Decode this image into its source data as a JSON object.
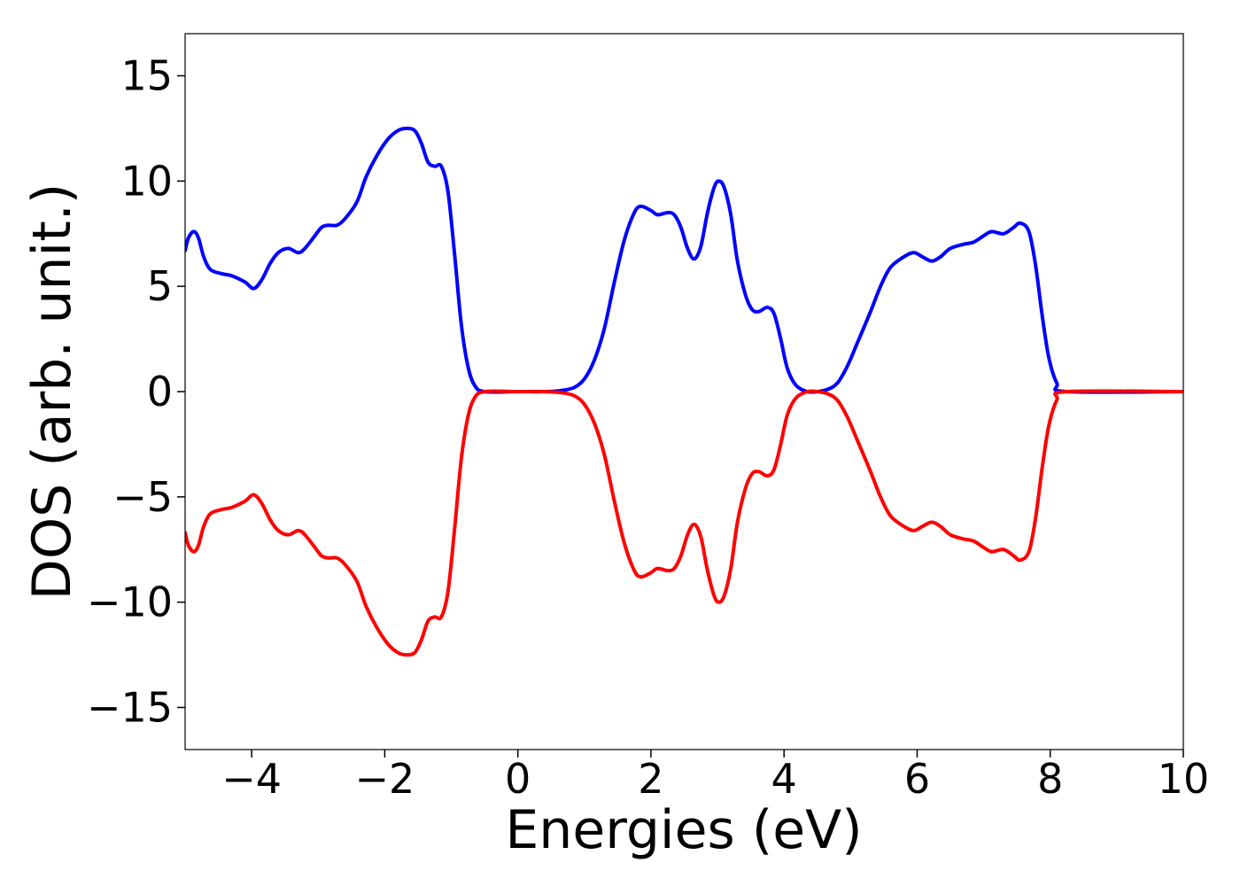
{
  "chart_data": {
    "type": "line",
    "title": "",
    "xlabel": "Energies (eV)",
    "ylabel": "DOS (arb. unit.)",
    "xlim": [
      -5,
      10
    ],
    "ylim": [
      -17,
      17
    ],
    "xticks": [
      -4,
      -2,
      0,
      2,
      4,
      6,
      8,
      10
    ],
    "yticks": [
      -15,
      -10,
      -5,
      0,
      5,
      10,
      15
    ],
    "xtick_labels": [
      "−4",
      "−2",
      "0",
      "2",
      "4",
      "6",
      "8",
      "10"
    ],
    "ytick_labels": [
      "−15",
      "−10",
      "−5",
      "0",
      "5",
      "10",
      "15"
    ],
    "grid": false,
    "legend": "none",
    "series": [
      {
        "color": "#0000ff",
        "points": [
          [
            -5.0,
            6.7
          ],
          [
            -4.95,
            7.3
          ],
          [
            -4.87,
            7.6
          ],
          [
            -4.8,
            7.3
          ],
          [
            -4.72,
            6.4
          ],
          [
            -4.62,
            5.8
          ],
          [
            -4.45,
            5.6
          ],
          [
            -4.3,
            5.5
          ],
          [
            -4.1,
            5.2
          ],
          [
            -3.97,
            4.9
          ],
          [
            -3.85,
            5.3
          ],
          [
            -3.72,
            6.1
          ],
          [
            -3.6,
            6.6
          ],
          [
            -3.45,
            6.8
          ],
          [
            -3.3,
            6.6
          ],
          [
            -3.2,
            6.8
          ],
          [
            -3.05,
            7.4
          ],
          [
            -2.95,
            7.8
          ],
          [
            -2.85,
            7.9
          ],
          [
            -2.72,
            7.9
          ],
          [
            -2.6,
            8.2
          ],
          [
            -2.42,
            9.0
          ],
          [
            -2.28,
            10.2
          ],
          [
            -2.12,
            11.2
          ],
          [
            -1.95,
            12.0
          ],
          [
            -1.8,
            12.4
          ],
          [
            -1.68,
            12.5
          ],
          [
            -1.55,
            12.4
          ],
          [
            -1.45,
            11.8
          ],
          [
            -1.35,
            10.9
          ],
          [
            -1.25,
            10.7
          ],
          [
            -1.15,
            10.7
          ],
          [
            -1.05,
            9.5
          ],
          [
            -0.95,
            6.5
          ],
          [
            -0.85,
            3.2
          ],
          [
            -0.75,
            1.2
          ],
          [
            -0.65,
            0.3
          ],
          [
            -0.5,
            0.0
          ],
          [
            0.0,
            0.0
          ],
          [
            0.4,
            0.0
          ],
          [
            0.65,
            0.05
          ],
          [
            0.85,
            0.2
          ],
          [
            1.0,
            0.6
          ],
          [
            1.15,
            1.5
          ],
          [
            1.3,
            3.0
          ],
          [
            1.45,
            5.2
          ],
          [
            1.6,
            7.2
          ],
          [
            1.75,
            8.5
          ],
          [
            1.85,
            8.8
          ],
          [
            2.0,
            8.6
          ],
          [
            2.1,
            8.4
          ],
          [
            2.25,
            8.5
          ],
          [
            2.35,
            8.4
          ],
          [
            2.45,
            7.8
          ],
          [
            2.55,
            6.8
          ],
          [
            2.65,
            6.3
          ],
          [
            2.75,
            6.9
          ],
          [
            2.85,
            8.5
          ],
          [
            2.95,
            9.7
          ],
          [
            3.02,
            10.0
          ],
          [
            3.1,
            9.7
          ],
          [
            3.2,
            8.4
          ],
          [
            3.3,
            6.2
          ],
          [
            3.42,
            4.6
          ],
          [
            3.52,
            3.9
          ],
          [
            3.62,
            3.8
          ],
          [
            3.75,
            4.0
          ],
          [
            3.85,
            3.7
          ],
          [
            3.95,
            2.5
          ],
          [
            4.05,
            1.1
          ],
          [
            4.18,
            0.3
          ],
          [
            4.35,
            0.0
          ],
          [
            4.5,
            0.0
          ],
          [
            4.65,
            0.1
          ],
          [
            4.8,
            0.4
          ],
          [
            4.95,
            1.2
          ],
          [
            5.1,
            2.3
          ],
          [
            5.3,
            3.8
          ],
          [
            5.45,
            5.0
          ],
          [
            5.6,
            5.9
          ],
          [
            5.8,
            6.4
          ],
          [
            5.95,
            6.6
          ],
          [
            6.08,
            6.4
          ],
          [
            6.22,
            6.2
          ],
          [
            6.35,
            6.4
          ],
          [
            6.5,
            6.8
          ],
          [
            6.7,
            7.0
          ],
          [
            6.85,
            7.1
          ],
          [
            7.0,
            7.4
          ],
          [
            7.12,
            7.6
          ],
          [
            7.3,
            7.5
          ],
          [
            7.45,
            7.8
          ],
          [
            7.55,
            8.0
          ],
          [
            7.68,
            7.6
          ],
          [
            7.78,
            6.0
          ],
          [
            7.88,
            3.6
          ],
          [
            7.98,
            1.6
          ],
          [
            8.1,
            0.4
          ],
          [
            8.25,
            0.0
          ],
          [
            10.0,
            0.0
          ]
        ]
      },
      {
        "color": "#ff0000",
        "points": [
          [
            -5.0,
            -6.7
          ],
          [
            -4.95,
            -7.3
          ],
          [
            -4.87,
            -7.6
          ],
          [
            -4.8,
            -7.3
          ],
          [
            -4.72,
            -6.4
          ],
          [
            -4.62,
            -5.8
          ],
          [
            -4.45,
            -5.6
          ],
          [
            -4.3,
            -5.5
          ],
          [
            -4.1,
            -5.2
          ],
          [
            -3.97,
            -4.9
          ],
          [
            -3.85,
            -5.3
          ],
          [
            -3.72,
            -6.1
          ],
          [
            -3.6,
            -6.6
          ],
          [
            -3.45,
            -6.8
          ],
          [
            -3.3,
            -6.6
          ],
          [
            -3.2,
            -6.8
          ],
          [
            -3.05,
            -7.4
          ],
          [
            -2.95,
            -7.8
          ],
          [
            -2.85,
            -7.9
          ],
          [
            -2.72,
            -7.9
          ],
          [
            -2.6,
            -8.2
          ],
          [
            -2.42,
            -9.0
          ],
          [
            -2.28,
            -10.2
          ],
          [
            -2.12,
            -11.2
          ],
          [
            -1.95,
            -12.0
          ],
          [
            -1.8,
            -12.4
          ],
          [
            -1.68,
            -12.5
          ],
          [
            -1.55,
            -12.4
          ],
          [
            -1.45,
            -11.8
          ],
          [
            -1.35,
            -10.9
          ],
          [
            -1.25,
            -10.7
          ],
          [
            -1.15,
            -10.7
          ],
          [
            -1.05,
            -9.5
          ],
          [
            -0.95,
            -6.5
          ],
          [
            -0.85,
            -3.2
          ],
          [
            -0.75,
            -1.2
          ],
          [
            -0.65,
            -0.3
          ],
          [
            -0.5,
            0.0
          ],
          [
            0.0,
            0.0
          ],
          [
            0.4,
            0.0
          ],
          [
            0.65,
            -0.05
          ],
          [
            0.85,
            -0.2
          ],
          [
            1.0,
            -0.6
          ],
          [
            1.15,
            -1.5
          ],
          [
            1.3,
            -3.0
          ],
          [
            1.45,
            -5.2
          ],
          [
            1.6,
            -7.2
          ],
          [
            1.75,
            -8.5
          ],
          [
            1.85,
            -8.8
          ],
          [
            2.0,
            -8.6
          ],
          [
            2.1,
            -8.4
          ],
          [
            2.25,
            -8.5
          ],
          [
            2.35,
            -8.4
          ],
          [
            2.45,
            -7.8
          ],
          [
            2.55,
            -6.8
          ],
          [
            2.65,
            -6.3
          ],
          [
            2.75,
            -6.9
          ],
          [
            2.85,
            -8.5
          ],
          [
            2.95,
            -9.7
          ],
          [
            3.02,
            -10.0
          ],
          [
            3.1,
            -9.7
          ],
          [
            3.2,
            -8.4
          ],
          [
            3.3,
            -6.2
          ],
          [
            3.42,
            -4.6
          ],
          [
            3.52,
            -3.9
          ],
          [
            3.62,
            -3.8
          ],
          [
            3.75,
            -4.0
          ],
          [
            3.85,
            -3.7
          ],
          [
            3.95,
            -2.5
          ],
          [
            4.05,
            -1.1
          ],
          [
            4.18,
            -0.3
          ],
          [
            4.35,
            0.0
          ],
          [
            4.5,
            0.0
          ],
          [
            4.65,
            -0.1
          ],
          [
            4.8,
            -0.4
          ],
          [
            4.95,
            -1.2
          ],
          [
            5.1,
            -2.3
          ],
          [
            5.3,
            -3.8
          ],
          [
            5.45,
            -5.0
          ],
          [
            5.6,
            -5.9
          ],
          [
            5.8,
            -6.4
          ],
          [
            5.95,
            -6.6
          ],
          [
            6.08,
            -6.4
          ],
          [
            6.22,
            -6.2
          ],
          [
            6.35,
            -6.4
          ],
          [
            6.5,
            -6.8
          ],
          [
            6.7,
            -7.0
          ],
          [
            6.85,
            -7.1
          ],
          [
            7.0,
            -7.4
          ],
          [
            7.12,
            -7.6
          ],
          [
            7.3,
            -7.5
          ],
          [
            7.45,
            -7.8
          ],
          [
            7.55,
            -8.0
          ],
          [
            7.68,
            -7.6
          ],
          [
            7.78,
            -6.0
          ],
          [
            7.88,
            -3.6
          ],
          [
            7.98,
            -1.6
          ],
          [
            8.1,
            -0.4
          ],
          [
            8.25,
            0.0
          ],
          [
            10.0,
            0.0
          ]
        ]
      }
    ]
  }
}
